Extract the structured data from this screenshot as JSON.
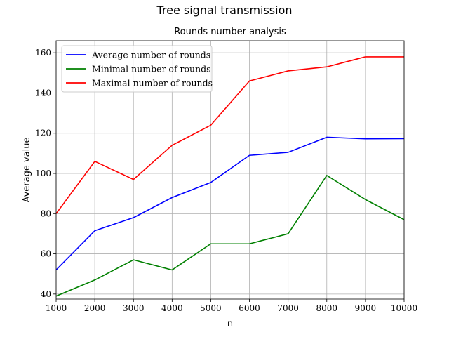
{
  "figure": {
    "suptitle": "Tree signal transmission"
  },
  "chart_data": {
    "type": "line",
    "title": "Rounds number analysis",
    "xlabel": "n",
    "ylabel": "Average value",
    "x": [
      1000,
      2000,
      3000,
      4000,
      5000,
      6000,
      7000,
      8000,
      9000,
      10000
    ],
    "xlim": [
      1000,
      10000
    ],
    "ylim": [
      37.5,
      166
    ],
    "xticks": [
      1000,
      2000,
      3000,
      4000,
      5000,
      6000,
      7000,
      8000,
      9000,
      10000
    ],
    "yticks": [
      40,
      60,
      80,
      100,
      120,
      140,
      160
    ],
    "grid": true,
    "legend_position": "top-left",
    "series": [
      {
        "name": "Average number of rounds",
        "color": "#0000ff",
        "values": [
          52,
          71.5,
          78,
          88,
          95.5,
          109,
          110.5,
          118,
          117.2,
          117.3
        ]
      },
      {
        "name": "Minimal number of rounds",
        "color": "#008000",
        "values": [
          39,
          47,
          57,
          52,
          65,
          65,
          70,
          99,
          87,
          77
        ]
      },
      {
        "name": "Maximal number of rounds",
        "color": "#ff0000",
        "values": [
          80,
          106,
          97,
          114,
          124,
          146,
          151,
          153,
          158,
          158
        ]
      }
    ]
  }
}
